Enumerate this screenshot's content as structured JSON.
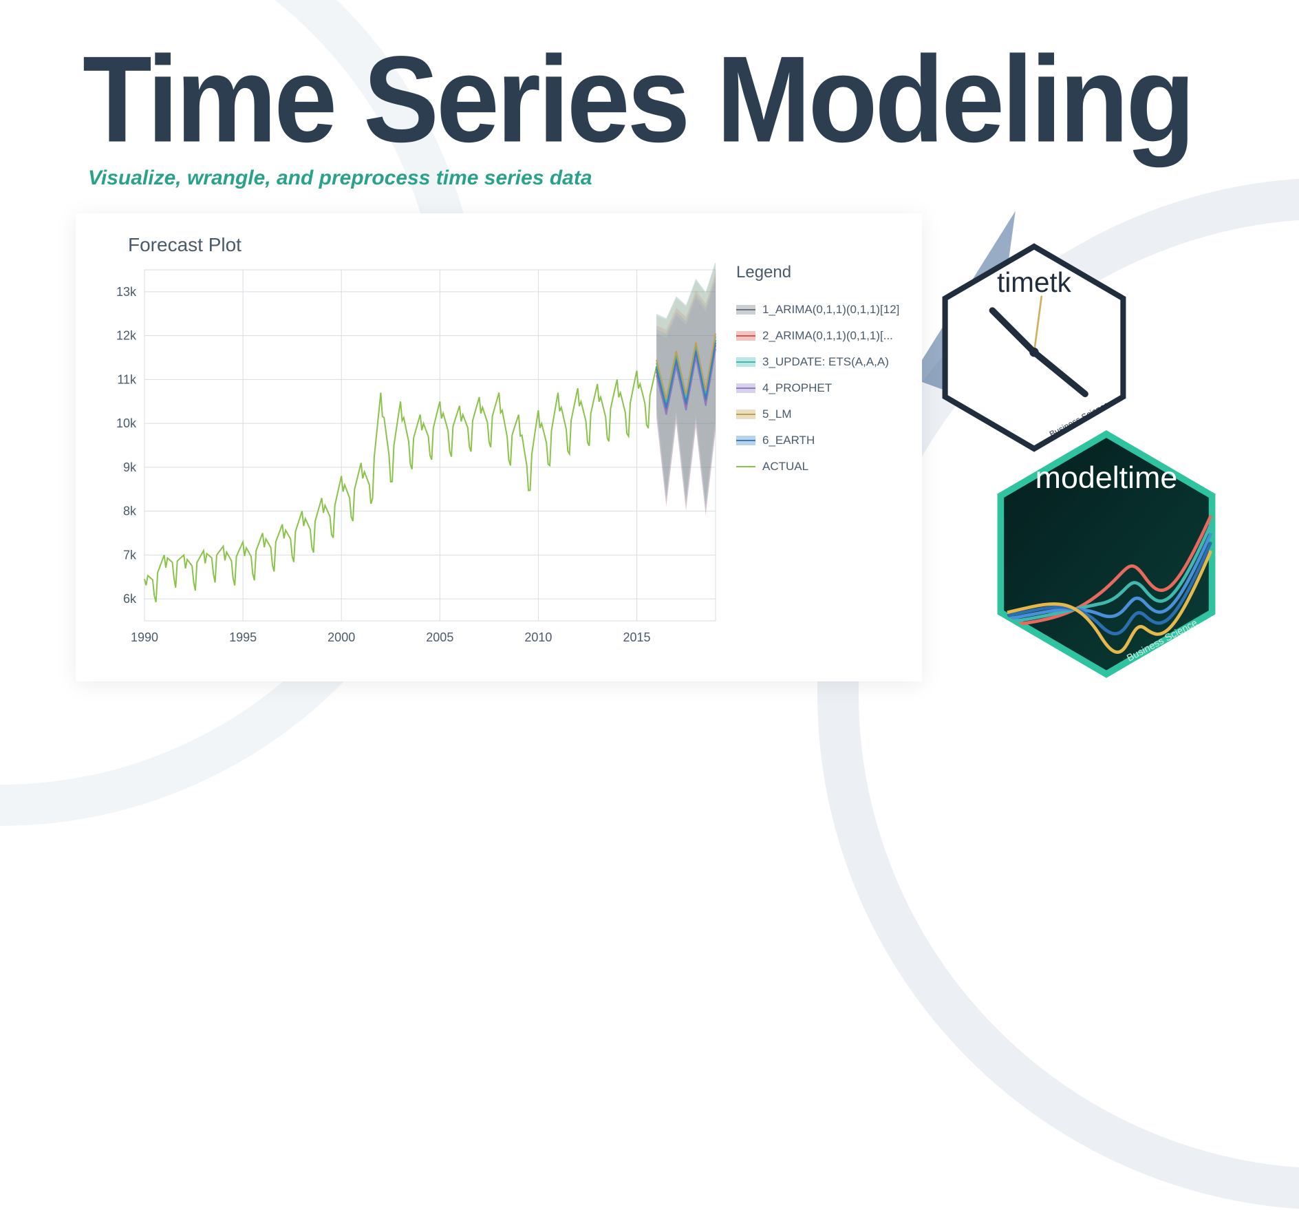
{
  "title": "Time Series Modeling",
  "subtitle": "Visualize, wrangle, and preprocess time series data",
  "title_color": "#2c3e50",
  "subtitle_color": "#2aa189",
  "chart": {
    "title": "Forecast Plot",
    "legend_title": "Legend",
    "type": "line",
    "background_color": "#ffffff",
    "grid_color": "#d7dde3",
    "axis_color": "#9aa8b5",
    "tick_fontsize": 18,
    "title_fontsize": 28,
    "xlim": [
      1990,
      2019
    ],
    "ylim": [
      5500,
      13500
    ],
    "xticks": [
      1990,
      1995,
      2000,
      2005,
      2010,
      2015
    ],
    "yticks": [
      6000,
      7000,
      8000,
      9000,
      10000,
      11000,
      12000,
      13000
    ],
    "ytick_labels": [
      "6k",
      "7k",
      "8k",
      "9k",
      "10k",
      "11k",
      "12k",
      "13k"
    ],
    "actual": {
      "label": "ACTUAL",
      "color": "#8bc34a",
      "line_width": 2,
      "x": [
        1990,
        1990.5,
        1991,
        1991.5,
        1992,
        1992.5,
        1993,
        1993.5,
        1994,
        1994.5,
        1995,
        1995.5,
        1996,
        1996.5,
        1997,
        1997.5,
        1998,
        1998.5,
        1999,
        1999.5,
        2000,
        2000.5,
        2001,
        2001.5,
        2002,
        2002.5,
        2003,
        2003.5,
        2004,
        2004.5,
        2005,
        2005.5,
        2006,
        2006.5,
        2007,
        2007.5,
        2008,
        2008.5,
        2009,
        2009.5,
        2010,
        2010.5,
        2011,
        2011.5,
        2012,
        2012.5,
        2013,
        2013.5,
        2014,
        2014.5,
        2015,
        2015.5,
        2016
      ],
      "y": [
        6600,
        6400,
        7000,
        6800,
        7000,
        6700,
        7100,
        6900,
        7200,
        6800,
        7300,
        6900,
        7500,
        7100,
        7700,
        7300,
        8000,
        7500,
        8300,
        7800,
        8800,
        8200,
        9100,
        8500,
        10700,
        9000,
        10500,
        9400,
        10200,
        9600,
        10500,
        9700,
        10400,
        9800,
        10600,
        9900,
        10700,
        9500,
        10200,
        8800,
        10300,
        9400,
        10700,
        9700,
        10800,
        9900,
        10900,
        10000,
        11000,
        10100,
        11200,
        10300,
        11300
      ],
      "seasonal_dips": true
    },
    "forecast_start_x": 2016,
    "forecast_end_x": 2019,
    "series": [
      {
        "label": "1_ARIMA(0,1,1)(0,1,1)[12]",
        "color": "#6c757d",
        "band_opacity": 0.35
      },
      {
        "label": "2_ARIMA(0,1,1)(0,1,1)[...",
        "color": "#d9534f",
        "band_opacity": 0.3
      },
      {
        "label": "3_UPDATE: ETS(A,A,A)",
        "color": "#3fb8af",
        "band_opacity": 0.3
      },
      {
        "label": "4_PROPHET",
        "color": "#8e7cc3",
        "band_opacity": 0.25
      },
      {
        "label": "5_LM",
        "color": "#c0a050",
        "band_opacity": 0.25
      },
      {
        "label": "6_EARTH",
        "color": "#3a7ec1",
        "band_opacity": 0.25
      }
    ],
    "forecast_template": {
      "x": [
        2016,
        2016.5,
        2017,
        2017.5,
        2018,
        2018.5,
        2019
      ],
      "mean": [
        11300,
        10400,
        11500,
        10500,
        11700,
        10600,
        11900
      ],
      "low": [
        10500,
        8500,
        10400,
        8400,
        10300,
        8300,
        10200
      ],
      "high": [
        12100,
        12000,
        12500,
        12300,
        12900,
        12600,
        13300
      ]
    }
  },
  "badges": {
    "timetk": {
      "label": "timetk",
      "caption": "Business Science",
      "bg": "#ffffff",
      "border": "#1f2d3d",
      "text_color": "#1f2d3d"
    },
    "modeltime": {
      "label": "modeltime",
      "caption": "Business Science",
      "bg_gradient_from": "#0a2a2a",
      "bg_gradient_to": "#0e4a44",
      "border": "#2fc3a0",
      "text_color": "#ffffff",
      "wave_colors": [
        "#e86a5e",
        "#3fb8af",
        "#4a90d9",
        "#2b6fb0",
        "#e6b84c"
      ]
    }
  }
}
